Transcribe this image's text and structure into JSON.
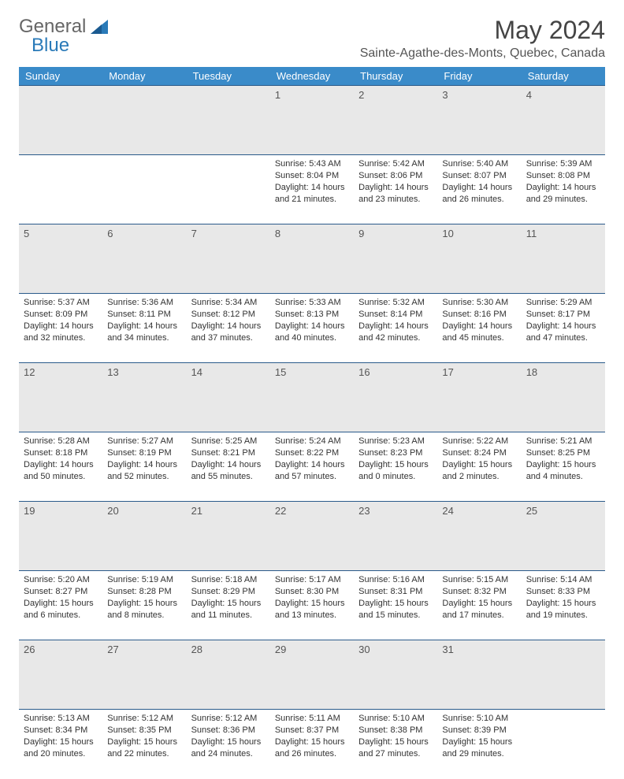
{
  "logo": {
    "text1": "General",
    "text2": "Blue"
  },
  "title": "May 2024",
  "location": "Sainte-Agathe-des-Monts, Quebec, Canada",
  "colors": {
    "header_bg": "#3a8bc9",
    "header_text": "#ffffff",
    "daynum_bg": "#e8e8e8",
    "border": "#2a5a8a",
    "logo_blue": "#2a7ab8"
  },
  "day_names": [
    "Sunday",
    "Monday",
    "Tuesday",
    "Wednesday",
    "Thursday",
    "Friday",
    "Saturday"
  ],
  "weeks": [
    {
      "nums": [
        "",
        "",
        "",
        "1",
        "2",
        "3",
        "4"
      ],
      "cells": [
        null,
        null,
        null,
        {
          "sunrise": "5:43 AM",
          "sunset": "8:04 PM",
          "daylight": "14 hours and 21 minutes."
        },
        {
          "sunrise": "5:42 AM",
          "sunset": "8:06 PM",
          "daylight": "14 hours and 23 minutes."
        },
        {
          "sunrise": "5:40 AM",
          "sunset": "8:07 PM",
          "daylight": "14 hours and 26 minutes."
        },
        {
          "sunrise": "5:39 AM",
          "sunset": "8:08 PM",
          "daylight": "14 hours and 29 minutes."
        }
      ]
    },
    {
      "nums": [
        "5",
        "6",
        "7",
        "8",
        "9",
        "10",
        "11"
      ],
      "cells": [
        {
          "sunrise": "5:37 AM",
          "sunset": "8:09 PM",
          "daylight": "14 hours and 32 minutes."
        },
        {
          "sunrise": "5:36 AM",
          "sunset": "8:11 PM",
          "daylight": "14 hours and 34 minutes."
        },
        {
          "sunrise": "5:34 AM",
          "sunset": "8:12 PM",
          "daylight": "14 hours and 37 minutes."
        },
        {
          "sunrise": "5:33 AM",
          "sunset": "8:13 PM",
          "daylight": "14 hours and 40 minutes."
        },
        {
          "sunrise": "5:32 AM",
          "sunset": "8:14 PM",
          "daylight": "14 hours and 42 minutes."
        },
        {
          "sunrise": "5:30 AM",
          "sunset": "8:16 PM",
          "daylight": "14 hours and 45 minutes."
        },
        {
          "sunrise": "5:29 AM",
          "sunset": "8:17 PM",
          "daylight": "14 hours and 47 minutes."
        }
      ]
    },
    {
      "nums": [
        "12",
        "13",
        "14",
        "15",
        "16",
        "17",
        "18"
      ],
      "cells": [
        {
          "sunrise": "5:28 AM",
          "sunset": "8:18 PM",
          "daylight": "14 hours and 50 minutes."
        },
        {
          "sunrise": "5:27 AM",
          "sunset": "8:19 PM",
          "daylight": "14 hours and 52 minutes."
        },
        {
          "sunrise": "5:25 AM",
          "sunset": "8:21 PM",
          "daylight": "14 hours and 55 minutes."
        },
        {
          "sunrise": "5:24 AM",
          "sunset": "8:22 PM",
          "daylight": "14 hours and 57 minutes."
        },
        {
          "sunrise": "5:23 AM",
          "sunset": "8:23 PM",
          "daylight": "15 hours and 0 minutes."
        },
        {
          "sunrise": "5:22 AM",
          "sunset": "8:24 PM",
          "daylight": "15 hours and 2 minutes."
        },
        {
          "sunrise": "5:21 AM",
          "sunset": "8:25 PM",
          "daylight": "15 hours and 4 minutes."
        }
      ]
    },
    {
      "nums": [
        "19",
        "20",
        "21",
        "22",
        "23",
        "24",
        "25"
      ],
      "cells": [
        {
          "sunrise": "5:20 AM",
          "sunset": "8:27 PM",
          "daylight": "15 hours and 6 minutes."
        },
        {
          "sunrise": "5:19 AM",
          "sunset": "8:28 PM",
          "daylight": "15 hours and 8 minutes."
        },
        {
          "sunrise": "5:18 AM",
          "sunset": "8:29 PM",
          "daylight": "15 hours and 11 minutes."
        },
        {
          "sunrise": "5:17 AM",
          "sunset": "8:30 PM",
          "daylight": "15 hours and 13 minutes."
        },
        {
          "sunrise": "5:16 AM",
          "sunset": "8:31 PM",
          "daylight": "15 hours and 15 minutes."
        },
        {
          "sunrise": "5:15 AM",
          "sunset": "8:32 PM",
          "daylight": "15 hours and 17 minutes."
        },
        {
          "sunrise": "5:14 AM",
          "sunset": "8:33 PM",
          "daylight": "15 hours and 19 minutes."
        }
      ]
    },
    {
      "nums": [
        "26",
        "27",
        "28",
        "29",
        "30",
        "31",
        ""
      ],
      "cells": [
        {
          "sunrise": "5:13 AM",
          "sunset": "8:34 PM",
          "daylight": "15 hours and 20 minutes."
        },
        {
          "sunrise": "5:12 AM",
          "sunset": "8:35 PM",
          "daylight": "15 hours and 22 minutes."
        },
        {
          "sunrise": "5:12 AM",
          "sunset": "8:36 PM",
          "daylight": "15 hours and 24 minutes."
        },
        {
          "sunrise": "5:11 AM",
          "sunset": "8:37 PM",
          "daylight": "15 hours and 26 minutes."
        },
        {
          "sunrise": "5:10 AM",
          "sunset": "8:38 PM",
          "daylight": "15 hours and 27 minutes."
        },
        {
          "sunrise": "5:10 AM",
          "sunset": "8:39 PM",
          "daylight": "15 hours and 29 minutes."
        },
        null
      ]
    }
  ],
  "labels": {
    "sunrise": "Sunrise:",
    "sunset": "Sunset:",
    "daylight": "Daylight:"
  }
}
